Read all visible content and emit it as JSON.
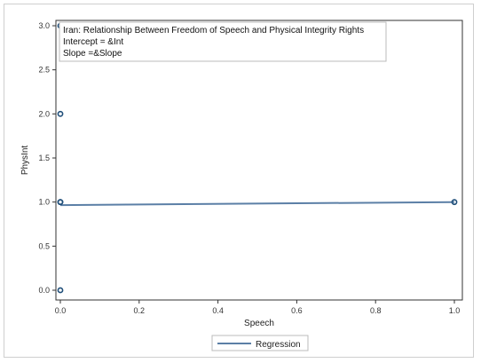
{
  "chart_data": {
    "type": "scatter",
    "inset": {
      "title": "Iran: Relationship Between Freedom of Speech and Physical Integrity Rights",
      "intercept_line": "Intercept = &Int",
      "slope_line": "Slope =&Slope"
    },
    "xlabel": "Speech",
    "ylabel": "PhysInt",
    "xlim": [
      0,
      1
    ],
    "ylim": [
      0,
      3
    ],
    "x_ticks": [
      "0.0",
      "0.2",
      "0.4",
      "0.6",
      "0.8",
      "1.0"
    ],
    "y_ticks": [
      "0.0",
      "0.5",
      "1.0",
      "1.5",
      "2.0",
      "2.5",
      "3.0"
    ],
    "points": [
      {
        "x": 0,
        "y": 3
      },
      {
        "x": 0,
        "y": 2
      },
      {
        "x": 0,
        "y": 1
      },
      {
        "x": 0,
        "y": 1
      },
      {
        "x": 0,
        "y": 0
      },
      {
        "x": 1,
        "y": 1
      }
    ],
    "regression": {
      "x": [
        0,
        1
      ],
      "y": [
        0.965,
        1.0
      ]
    },
    "legend": {
      "entries": [
        "Regression"
      ],
      "placement": "bottom"
    },
    "colors": {
      "marker": "#1f4e79",
      "line": "#5b7fa6",
      "frame": "#333333"
    }
  }
}
